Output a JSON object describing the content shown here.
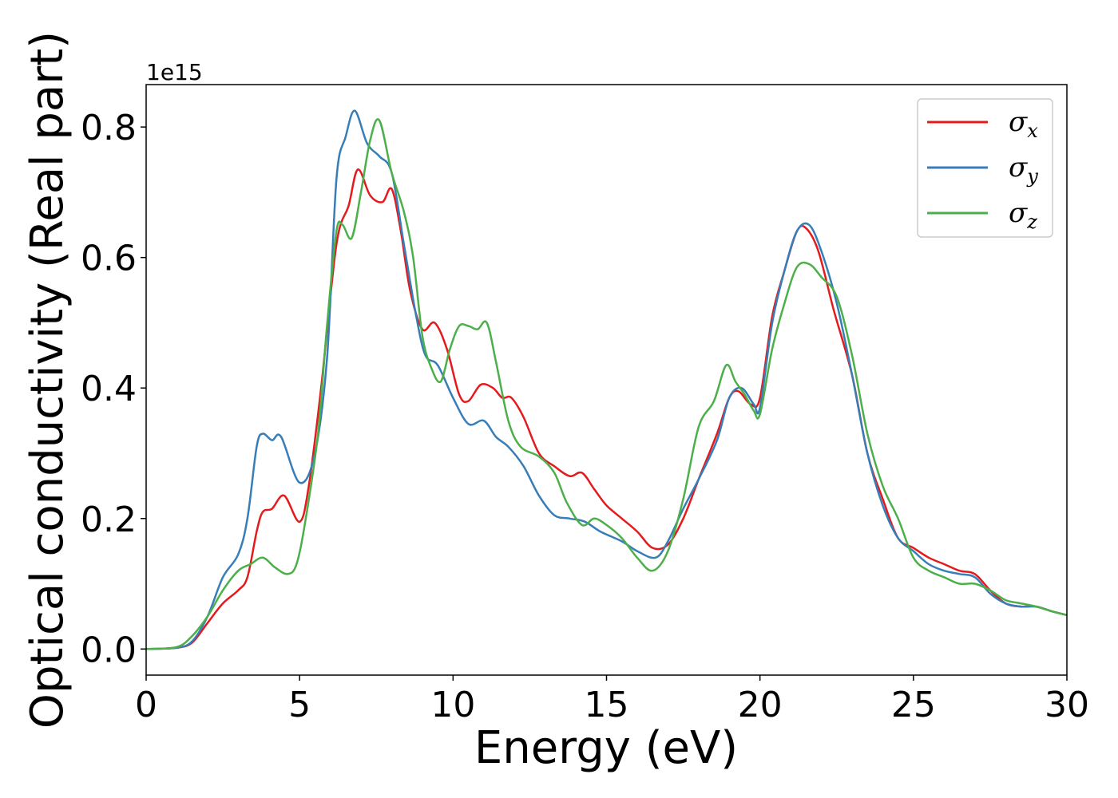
{
  "chart_data": {
    "type": "line",
    "xlabel": "Energy (eV)",
    "ylabel": "Optical conductivity (Real part)",
    "y_offset_label": "1e15",
    "xlim": [
      0,
      30
    ],
    "ylim": [
      -0.04,
      0.865
    ],
    "x_ticks": [
      0,
      5,
      10,
      15,
      20,
      25,
      30
    ],
    "x_tick_labels": [
      "0",
      "5",
      "10",
      "15",
      "20",
      "25",
      "30"
    ],
    "y_ticks": [
      0.0,
      0.2,
      0.4,
      0.6,
      0.8
    ],
    "y_tick_labels": [
      "0.0",
      "0.2",
      "0.4",
      "0.6",
      "0.8"
    ],
    "grid": false,
    "legend_position": "top-right",
    "series": [
      {
        "name": "σx",
        "symbol": "σ",
        "subscript": "x",
        "color": "#e41a1c",
        "points": [
          [
            0,
            0
          ],
          [
            1,
            0.002
          ],
          [
            1.5,
            0.01
          ],
          [
            2,
            0.04
          ],
          [
            2.5,
            0.07
          ],
          [
            3,
            0.09
          ],
          [
            3.3,
            0.11
          ],
          [
            3.6,
            0.18
          ],
          [
            3.8,
            0.21
          ],
          [
            4.1,
            0.215
          ],
          [
            4.5,
            0.235
          ],
          [
            5,
            0.195
          ],
          [
            5.3,
            0.25
          ],
          [
            5.7,
            0.4
          ],
          [
            6.2,
            0.62
          ],
          [
            6.6,
            0.68
          ],
          [
            6.9,
            0.735
          ],
          [
            7.3,
            0.695
          ],
          [
            7.7,
            0.685
          ],
          [
            8,
            0.705
          ],
          [
            8.3,
            0.64
          ],
          [
            8.6,
            0.55
          ],
          [
            9,
            0.49
          ],
          [
            9.4,
            0.5
          ],
          [
            9.8,
            0.46
          ],
          [
            10.2,
            0.39
          ],
          [
            10.5,
            0.38
          ],
          [
            10.9,
            0.405
          ],
          [
            11.3,
            0.4
          ],
          [
            11.6,
            0.385
          ],
          [
            11.9,
            0.385
          ],
          [
            12.3,
            0.355
          ],
          [
            12.8,
            0.3
          ],
          [
            13.3,
            0.28
          ],
          [
            13.8,
            0.265
          ],
          [
            14.2,
            0.27
          ],
          [
            14.6,
            0.245
          ],
          [
            15,
            0.22
          ],
          [
            15.5,
            0.2
          ],
          [
            16,
            0.18
          ],
          [
            16.5,
            0.155
          ],
          [
            17,
            0.16
          ],
          [
            17.5,
            0.2
          ],
          [
            18,
            0.26
          ],
          [
            18.6,
            0.33
          ],
          [
            19,
            0.385
          ],
          [
            19.3,
            0.395
          ],
          [
            19.7,
            0.375
          ],
          [
            20,
            0.385
          ],
          [
            20.4,
            0.51
          ],
          [
            20.8,
            0.58
          ],
          [
            21.2,
            0.64
          ],
          [
            21.5,
            0.645
          ],
          [
            21.9,
            0.61
          ],
          [
            22.4,
            0.52
          ],
          [
            23,
            0.42
          ],
          [
            23.5,
            0.3
          ],
          [
            24,
            0.23
          ],
          [
            24.5,
            0.17
          ],
          [
            25,
            0.155
          ],
          [
            25.5,
            0.14
          ],
          [
            26,
            0.13
          ],
          [
            26.5,
            0.12
          ],
          [
            27,
            0.115
          ],
          [
            27.5,
            0.09
          ],
          [
            28,
            0.07
          ],
          [
            28.5,
            0.065
          ],
          [
            29,
            0.065
          ],
          [
            29.5,
            0.058
          ],
          [
            30,
            0.052
          ]
        ]
      },
      {
        "name": "σy",
        "symbol": "σ",
        "subscript": "y",
        "color": "#377eb8",
        "points": [
          [
            0,
            0
          ],
          [
            1,
            0.002
          ],
          [
            1.5,
            0.012
          ],
          [
            2,
            0.05
          ],
          [
            2.5,
            0.11
          ],
          [
            3,
            0.145
          ],
          [
            3.3,
            0.2
          ],
          [
            3.6,
            0.31
          ],
          [
            3.8,
            0.33
          ],
          [
            4.1,
            0.32
          ],
          [
            4.4,
            0.325
          ],
          [
            5,
            0.255
          ],
          [
            5.5,
            0.3
          ],
          [
            5.9,
            0.45
          ],
          [
            6.2,
            0.72
          ],
          [
            6.5,
            0.785
          ],
          [
            6.8,
            0.825
          ],
          [
            7.2,
            0.775
          ],
          [
            7.6,
            0.755
          ],
          [
            8,
            0.73
          ],
          [
            8.4,
            0.62
          ],
          [
            8.8,
            0.51
          ],
          [
            9.1,
            0.45
          ],
          [
            9.5,
            0.435
          ],
          [
            10,
            0.385
          ],
          [
            10.5,
            0.345
          ],
          [
            11,
            0.35
          ],
          [
            11.4,
            0.325
          ],
          [
            11.8,
            0.31
          ],
          [
            12.3,
            0.28
          ],
          [
            12.8,
            0.235
          ],
          [
            13.3,
            0.205
          ],
          [
            13.8,
            0.2
          ],
          [
            14.3,
            0.195
          ],
          [
            14.8,
            0.18
          ],
          [
            15.5,
            0.165
          ],
          [
            16,
            0.15
          ],
          [
            16.6,
            0.14
          ],
          [
            17,
            0.165
          ],
          [
            17.5,
            0.215
          ],
          [
            18,
            0.26
          ],
          [
            18.6,
            0.32
          ],
          [
            19,
            0.385
          ],
          [
            19.4,
            0.4
          ],
          [
            19.8,
            0.375
          ],
          [
            20,
            0.37
          ],
          [
            20.4,
            0.5
          ],
          [
            20.8,
            0.58
          ],
          [
            21.2,
            0.64
          ],
          [
            21.6,
            0.65
          ],
          [
            22,
            0.61
          ],
          [
            22.5,
            0.53
          ],
          [
            23,
            0.42
          ],
          [
            23.5,
            0.3
          ],
          [
            24,
            0.22
          ],
          [
            24.5,
            0.17
          ],
          [
            25,
            0.15
          ],
          [
            25.5,
            0.13
          ],
          [
            26,
            0.12
          ],
          [
            26.5,
            0.115
          ],
          [
            27,
            0.11
          ],
          [
            27.5,
            0.085
          ],
          [
            28,
            0.07
          ],
          [
            28.5,
            0.065
          ],
          [
            29,
            0.065
          ],
          [
            29.5,
            0.058
          ],
          [
            30,
            0.052
          ]
        ]
      },
      {
        "name": "σz",
        "symbol": "σ",
        "subscript": "z",
        "color": "#4daf4a",
        "points": [
          [
            0,
            0
          ],
          [
            1,
            0.003
          ],
          [
            1.5,
            0.02
          ],
          [
            2,
            0.05
          ],
          [
            2.5,
            0.09
          ],
          [
            3,
            0.12
          ],
          [
            3.4,
            0.13
          ],
          [
            3.8,
            0.14
          ],
          [
            4.2,
            0.125
          ],
          [
            4.6,
            0.115
          ],
          [
            4.9,
            0.13
          ],
          [
            5.2,
            0.2
          ],
          [
            5.6,
            0.33
          ],
          [
            5.9,
            0.5
          ],
          [
            6.2,
            0.64
          ],
          [
            6.4,
            0.65
          ],
          [
            6.7,
            0.63
          ],
          [
            7,
            0.7
          ],
          [
            7.3,
            0.78
          ],
          [
            7.6,
            0.81
          ],
          [
            8,
            0.73
          ],
          [
            8.4,
            0.67
          ],
          [
            8.7,
            0.6
          ],
          [
            9,
            0.48
          ],
          [
            9.3,
            0.43
          ],
          [
            9.6,
            0.41
          ],
          [
            9.9,
            0.46
          ],
          [
            10.2,
            0.495
          ],
          [
            10.5,
            0.495
          ],
          [
            10.8,
            0.49
          ],
          [
            11.1,
            0.5
          ],
          [
            11.4,
            0.44
          ],
          [
            11.8,
            0.35
          ],
          [
            12.2,
            0.31
          ],
          [
            12.8,
            0.295
          ],
          [
            13.3,
            0.27
          ],
          [
            13.7,
            0.225
          ],
          [
            14.2,
            0.19
          ],
          [
            14.6,
            0.2
          ],
          [
            15,
            0.19
          ],
          [
            15.5,
            0.17
          ],
          [
            16,
            0.14
          ],
          [
            16.5,
            0.12
          ],
          [
            17,
            0.15
          ],
          [
            17.5,
            0.23
          ],
          [
            18,
            0.34
          ],
          [
            18.5,
            0.38
          ],
          [
            18.9,
            0.435
          ],
          [
            19.2,
            0.41
          ],
          [
            19.5,
            0.39
          ],
          [
            19.8,
            0.365
          ],
          [
            20,
            0.36
          ],
          [
            20.4,
            0.46
          ],
          [
            20.8,
            0.53
          ],
          [
            21.2,
            0.585
          ],
          [
            21.6,
            0.59
          ],
          [
            22,
            0.57
          ],
          [
            22.5,
            0.54
          ],
          [
            23,
            0.45
          ],
          [
            23.5,
            0.33
          ],
          [
            24,
            0.25
          ],
          [
            24.5,
            0.2
          ],
          [
            25,
            0.14
          ],
          [
            25.5,
            0.12
          ],
          [
            26,
            0.11
          ],
          [
            26.5,
            0.1
          ],
          [
            27,
            0.1
          ],
          [
            27.5,
            0.09
          ],
          [
            28,
            0.075
          ],
          [
            28.5,
            0.07
          ],
          [
            29,
            0.065
          ],
          [
            29.5,
            0.058
          ],
          [
            30,
            0.052
          ]
        ]
      }
    ]
  }
}
